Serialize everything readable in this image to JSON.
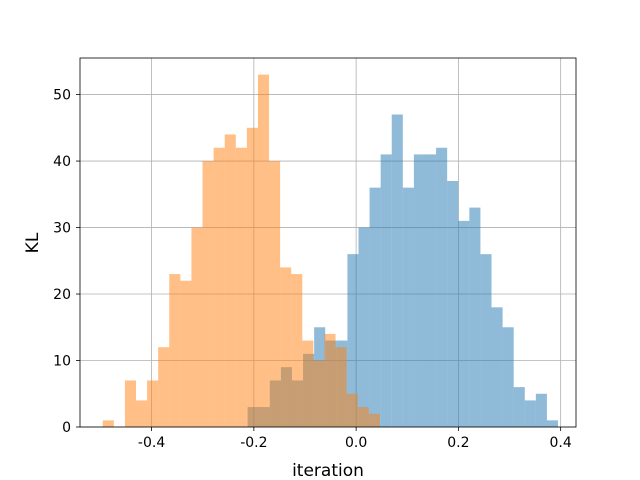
{
  "chart_data": {
    "type": "histogram",
    "title": "",
    "xlabel": "iteration",
    "ylabel": "KL",
    "xlim": [
      -0.54,
      0.43
    ],
    "ylim": [
      0,
      55.5
    ],
    "grid": true,
    "x_ticks": [
      "-0.4",
      "-0.2",
      "0.0",
      "0.2",
      "0.4"
    ],
    "x_tick_values": [
      -0.4,
      -0.2,
      0.0,
      0.2,
      0.4
    ],
    "y_ticks": [
      "0",
      "10",
      "20",
      "30",
      "40",
      "50"
    ],
    "y_tick_values": [
      0,
      10,
      20,
      30,
      40,
      50
    ],
    "series": [
      {
        "color": "#1f77b4",
        "alpha": 0.5,
        "bin_start": -0.2122,
        "bin_width": 0.02168,
        "counts": [
          3,
          3,
          7,
          9,
          7,
          11,
          15,
          13,
          13,
          26,
          30,
          36,
          41,
          47,
          36,
          41,
          41,
          42,
          37,
          31,
          33,
          26,
          18,
          15,
          6,
          4,
          5,
          1
        ]
      },
      {
        "color": "#ff7f0e",
        "alpha": 0.5,
        "bin_start": -0.4955,
        "bin_width": 0.02168,
        "counts": [
          1,
          0,
          7,
          4,
          7,
          12,
          23,
          22,
          30,
          40,
          42,
          44,
          42,
          45,
          53,
          40,
          24,
          23,
          13,
          10,
          14,
          12,
          5,
          3,
          2
        ]
      }
    ]
  }
}
